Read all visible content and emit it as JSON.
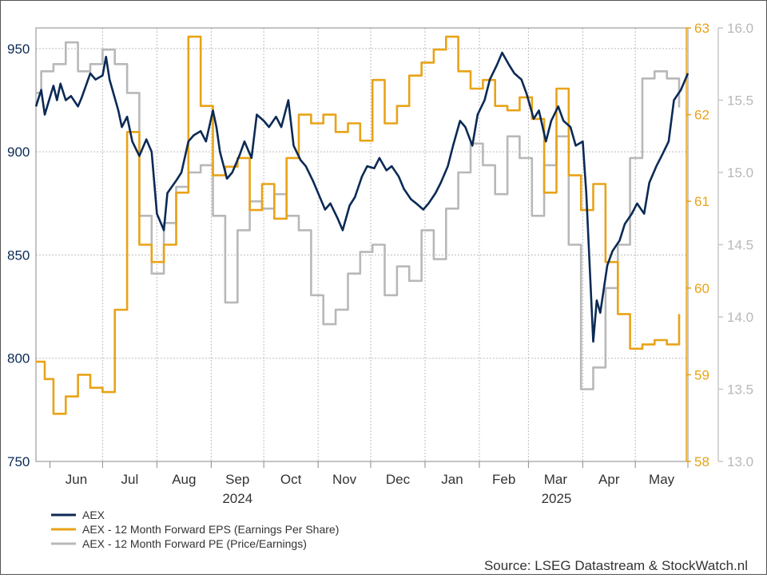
{
  "chart_data": {
    "type": "line",
    "source": "Source: LSEG Datastream & StockWatch.nl",
    "months": [
      "Jun",
      "Jul",
      "Aug",
      "Sep",
      "Oct",
      "Nov",
      "Dec",
      "Jan",
      "Feb",
      "Mar",
      "Apr",
      "May"
    ],
    "years": [
      "2024",
      "2025"
    ],
    "x_start": "2024-05-24",
    "x_end": "2025-05-31",
    "axes": {
      "left": {
        "ylim": [
          750,
          960
        ],
        "ticks": [
          750,
          800,
          850,
          900,
          950
        ],
        "color": "#0b2a55"
      },
      "eps": {
        "ylim": [
          58,
          63
        ],
        "ticks": [
          58,
          59,
          60,
          61,
          62,
          63
        ],
        "color": "#e8a317"
      },
      "pe": {
        "ylim": [
          13,
          16
        ],
        "ticks": [
          "13.0",
          "13.5",
          "14.0",
          "14.5",
          "15.0",
          "15.5",
          "16.0"
        ],
        "color": "#b8b8b8"
      }
    },
    "legend": {
      "placement": "bottom-left"
    },
    "grid": true,
    "series": [
      {
        "name": "AEX",
        "axis": "left",
        "color": "#0b2a55",
        "points": [
          [
            "2024-05-24",
            922
          ],
          [
            "2024-05-27",
            930
          ],
          [
            "2024-05-29",
            918
          ],
          [
            "2024-06-03",
            932
          ],
          [
            "2024-06-05",
            925
          ],
          [
            "2024-06-07",
            933
          ],
          [
            "2024-06-10",
            925
          ],
          [
            "2024-06-13",
            927
          ],
          [
            "2024-06-17",
            922
          ],
          [
            "2024-06-19",
            926
          ],
          [
            "2024-06-24",
            938
          ],
          [
            "2024-06-27",
            935
          ],
          [
            "2024-07-01",
            937
          ],
          [
            "2024-07-03",
            946
          ],
          [
            "2024-07-05",
            935
          ],
          [
            "2024-07-10",
            920
          ],
          [
            "2024-07-12",
            912
          ],
          [
            "2024-07-15",
            917
          ],
          [
            "2024-07-18",
            905
          ],
          [
            "2024-07-22",
            898
          ],
          [
            "2024-07-26",
            906
          ],
          [
            "2024-07-29",
            900
          ],
          [
            "2024-08-01",
            870
          ],
          [
            "2024-08-05",
            862
          ],
          [
            "2024-08-07",
            880
          ],
          [
            "2024-08-12",
            886
          ],
          [
            "2024-08-15",
            890
          ],
          [
            "2024-08-19",
            905
          ],
          [
            "2024-08-22",
            908
          ],
          [
            "2024-08-26",
            910
          ],
          [
            "2024-08-29",
            905
          ],
          [
            "2024-09-02",
            920
          ],
          [
            "2024-09-04",
            912
          ],
          [
            "2024-09-06",
            900
          ],
          [
            "2024-09-10",
            887
          ],
          [
            "2024-09-13",
            890
          ],
          [
            "2024-09-17",
            898
          ],
          [
            "2024-09-20",
            905
          ],
          [
            "2024-09-24",
            897
          ],
          [
            "2024-09-27",
            918
          ],
          [
            "2024-10-01",
            915
          ],
          [
            "2024-10-04",
            912
          ],
          [
            "2024-10-08",
            917
          ],
          [
            "2024-10-11",
            912
          ],
          [
            "2024-10-15",
            925
          ],
          [
            "2024-10-18",
            903
          ],
          [
            "2024-10-22",
            896
          ],
          [
            "2024-10-25",
            893
          ],
          [
            "2024-10-29",
            886
          ],
          [
            "2024-11-01",
            880
          ],
          [
            "2024-11-05",
            872
          ],
          [
            "2024-11-08",
            875
          ],
          [
            "2024-11-12",
            868
          ],
          [
            "2024-11-15",
            862
          ],
          [
            "2024-11-19",
            874
          ],
          [
            "2024-11-22",
            878
          ],
          [
            "2024-11-26",
            888
          ],
          [
            "2024-11-29",
            893
          ],
          [
            "2024-12-03",
            892
          ],
          [
            "2024-12-06",
            897
          ],
          [
            "2024-12-10",
            891
          ],
          [
            "2024-12-13",
            893
          ],
          [
            "2024-12-17",
            888
          ],
          [
            "2024-12-20",
            882
          ],
          [
            "2024-12-24",
            877
          ],
          [
            "2024-12-27",
            875
          ],
          [
            "2024-12-31",
            872
          ],
          [
            "2025-01-03",
            875
          ],
          [
            "2025-01-07",
            880
          ],
          [
            "2025-01-10",
            885
          ],
          [
            "2025-01-14",
            893
          ],
          [
            "2025-01-17",
            903
          ],
          [
            "2025-01-21",
            915
          ],
          [
            "2025-01-24",
            912
          ],
          [
            "2025-01-28",
            903
          ],
          [
            "2025-01-31",
            918
          ],
          [
            "2025-02-04",
            925
          ],
          [
            "2025-02-07",
            935
          ],
          [
            "2025-02-11",
            942
          ],
          [
            "2025-02-14",
            948
          ],
          [
            "2025-02-18",
            942
          ],
          [
            "2025-02-21",
            938
          ],
          [
            "2025-02-25",
            935
          ],
          [
            "2025-02-28",
            928
          ],
          [
            "2025-03-04",
            916
          ],
          [
            "2025-03-07",
            920
          ],
          [
            "2025-03-11",
            905
          ],
          [
            "2025-03-14",
            915
          ],
          [
            "2025-03-18",
            922
          ],
          [
            "2025-03-21",
            915
          ],
          [
            "2025-03-25",
            912
          ],
          [
            "2025-03-28",
            903
          ],
          [
            "2025-04-01",
            905
          ],
          [
            "2025-04-03",
            880
          ],
          [
            "2025-04-07",
            808
          ],
          [
            "2025-04-09",
            828
          ],
          [
            "2025-04-11",
            822
          ],
          [
            "2025-04-15",
            845
          ],
          [
            "2025-04-18",
            852
          ],
          [
            "2025-04-22",
            857
          ],
          [
            "2025-04-25",
            865
          ],
          [
            "2025-04-29",
            870
          ],
          [
            "2025-05-02",
            875
          ],
          [
            "2025-05-06",
            870
          ],
          [
            "2025-05-09",
            885
          ],
          [
            "2025-05-13",
            893
          ],
          [
            "2025-05-16",
            898
          ],
          [
            "2025-05-20",
            905
          ],
          [
            "2025-05-23",
            925
          ],
          [
            "2025-05-27",
            930
          ],
          [
            "2025-05-31",
            938
          ]
        ]
      },
      {
        "name": "AEX - 12 Month Forward EPS (Earnings Per Share)",
        "axis": "eps",
        "color": "#e8a317",
        "points": [
          [
            "2024-05-24",
            59.15
          ],
          [
            "2024-05-29",
            58.95
          ],
          [
            "2024-06-03",
            58.55
          ],
          [
            "2024-06-10",
            58.75
          ],
          [
            "2024-06-17",
            59.0
          ],
          [
            "2024-06-24",
            58.85
          ],
          [
            "2024-07-01",
            58.8
          ],
          [
            "2024-07-08",
            59.75
          ],
          [
            "2024-07-15",
            61.8
          ],
          [
            "2024-07-22",
            60.5
          ],
          [
            "2024-07-29",
            60.3
          ],
          [
            "2024-08-05",
            60.5
          ],
          [
            "2024-08-12",
            61.1
          ],
          [
            "2024-08-19",
            62.9
          ],
          [
            "2024-08-26",
            62.1
          ],
          [
            "2024-09-02",
            61.3
          ],
          [
            "2024-09-09",
            61.4
          ],
          [
            "2024-09-16",
            61.5
          ],
          [
            "2024-09-23",
            60.9
          ],
          [
            "2024-09-30",
            61.2
          ],
          [
            "2024-10-07",
            60.8
          ],
          [
            "2024-10-14",
            61.5
          ],
          [
            "2024-10-21",
            62.0
          ],
          [
            "2024-10-28",
            61.9
          ],
          [
            "2024-11-04",
            62.0
          ],
          [
            "2024-11-11",
            61.8
          ],
          [
            "2024-11-18",
            61.9
          ],
          [
            "2024-11-25",
            61.7
          ],
          [
            "2024-12-02",
            62.4
          ],
          [
            "2024-12-09",
            61.9
          ],
          [
            "2024-12-16",
            62.1
          ],
          [
            "2024-12-23",
            62.45
          ],
          [
            "2024-12-30",
            62.6
          ],
          [
            "2025-01-06",
            62.75
          ],
          [
            "2025-01-13",
            62.9
          ],
          [
            "2025-01-20",
            62.5
          ],
          [
            "2025-01-27",
            62.3
          ],
          [
            "2025-02-03",
            62.4
          ],
          [
            "2025-02-10",
            62.1
          ],
          [
            "2025-02-17",
            62.05
          ],
          [
            "2025-02-24",
            62.2
          ],
          [
            "2025-03-03",
            61.95
          ],
          [
            "2025-03-10",
            61.1
          ],
          [
            "2025-03-17",
            62.3
          ],
          [
            "2025-03-24",
            61.3
          ],
          [
            "2025-03-31",
            60.9
          ],
          [
            "2025-04-07",
            61.2
          ],
          [
            "2025-04-14",
            60.3
          ],
          [
            "2025-04-21",
            59.7
          ],
          [
            "2025-04-28",
            59.3
          ],
          [
            "2025-05-05",
            59.35
          ],
          [
            "2025-05-12",
            59.4
          ],
          [
            "2025-05-19",
            59.35
          ],
          [
            "2025-05-26",
            59.7
          ]
        ]
      },
      {
        "name": "AEX - 12 Month Forward PE (Price/Earnings)",
        "axis": "pe",
        "color": "#b8b8b8",
        "points": [
          [
            "2024-05-24",
            15.55
          ],
          [
            "2024-05-27",
            15.7
          ],
          [
            "2024-06-03",
            15.75
          ],
          [
            "2024-06-10",
            15.9
          ],
          [
            "2024-06-17",
            15.7
          ],
          [
            "2024-06-24",
            15.75
          ],
          [
            "2024-07-01",
            15.85
          ],
          [
            "2024-07-08",
            15.75
          ],
          [
            "2024-07-15",
            15.55
          ],
          [
            "2024-07-22",
            14.7
          ],
          [
            "2024-07-29",
            14.3
          ],
          [
            "2024-08-05",
            14.65
          ],
          [
            "2024-08-12",
            14.9
          ],
          [
            "2024-08-19",
            15.0
          ],
          [
            "2024-08-26",
            15.05
          ],
          [
            "2024-09-02",
            14.7
          ],
          [
            "2024-09-09",
            14.1
          ],
          [
            "2024-09-16",
            14.6
          ],
          [
            "2024-09-23",
            14.8
          ],
          [
            "2024-09-30",
            14.75
          ],
          [
            "2024-10-07",
            14.85
          ],
          [
            "2024-10-14",
            14.7
          ],
          [
            "2024-10-21",
            14.6
          ],
          [
            "2024-10-28",
            14.15
          ],
          [
            "2024-11-04",
            13.95
          ],
          [
            "2024-11-11",
            14.05
          ],
          [
            "2024-11-18",
            14.3
          ],
          [
            "2024-11-25",
            14.45
          ],
          [
            "2024-12-02",
            14.5
          ],
          [
            "2024-12-09",
            14.15
          ],
          [
            "2024-12-16",
            14.35
          ],
          [
            "2024-12-23",
            14.25
          ],
          [
            "2024-12-30",
            14.6
          ],
          [
            "2025-01-06",
            14.4
          ],
          [
            "2025-01-13",
            14.75
          ],
          [
            "2025-01-20",
            15.0
          ],
          [
            "2025-01-27",
            15.2
          ],
          [
            "2025-02-03",
            15.05
          ],
          [
            "2025-02-10",
            14.85
          ],
          [
            "2025-02-17",
            15.25
          ],
          [
            "2025-02-24",
            15.1
          ],
          [
            "2025-03-03",
            14.7
          ],
          [
            "2025-03-10",
            15.05
          ],
          [
            "2025-03-17",
            15.25
          ],
          [
            "2025-03-24",
            14.5
          ],
          [
            "2025-03-31",
            13.5
          ],
          [
            "2025-04-07",
            13.65
          ],
          [
            "2025-04-14",
            14.2
          ],
          [
            "2025-04-21",
            14.5
          ],
          [
            "2025-04-28",
            15.1
          ],
          [
            "2025-05-05",
            15.65
          ],
          [
            "2025-05-12",
            15.7
          ],
          [
            "2025-05-19",
            15.65
          ],
          [
            "2025-05-26",
            15.45
          ]
        ]
      }
    ]
  }
}
